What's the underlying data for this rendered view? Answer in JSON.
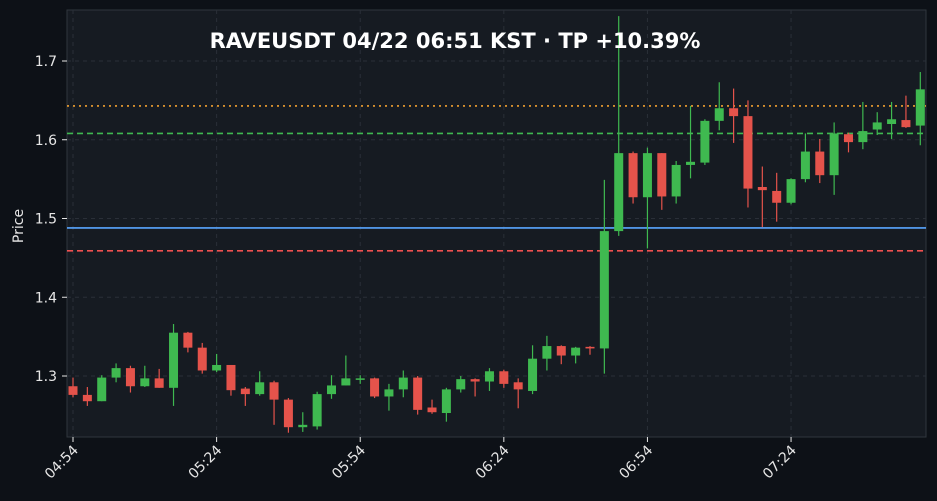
{
  "chart_data": {
    "type": "candlestick",
    "title": "RAVEUSDT  04/22 06:51 KST  ·  TP +10.39%",
    "symbol": "RAVEUSDT",
    "timestamp": "04/22 06:51 KST",
    "result": "TP +10.39%",
    "xlabel": "",
    "ylabel": "Price",
    "ylim": [
      1.222,
      1.762
    ],
    "y_ticks": [
      1.3,
      1.4,
      1.5,
      1.6,
      1.7
    ],
    "y_tick_labels": [
      "1.3",
      "1.4",
      "1.5",
      "1.6",
      "1.7"
    ],
    "x_tick_labels": [
      "04:54",
      "05:24",
      "05:54",
      "06:24",
      "06:54",
      "07:24"
    ],
    "x_tick_minutes": [
      0,
      30,
      60,
      90,
      120,
      150
    ],
    "interval_minutes": 3,
    "grid": true,
    "levels": [
      {
        "name": "take-profit",
        "price": 1.643,
        "color": "#f0a030",
        "style": "dotted"
      },
      {
        "name": "target",
        "price": 1.608,
        "color": "#3fb950",
        "style": "dashed"
      },
      {
        "name": "entry",
        "price": 1.488,
        "color": "#58a6ff",
        "style": "solid"
      },
      {
        "name": "stop-loss",
        "price": 1.459,
        "color": "#f05050",
        "style": "dashed"
      }
    ],
    "colors": {
      "up": "#3fb950",
      "down": "#e5534b",
      "background": "#161b22",
      "page": "#0d1117"
    },
    "candles": [
      {
        "t": 0,
        "o": 1.287,
        "h": 1.298,
        "l": 1.273,
        "c": 1.276
      },
      {
        "t": 3,
        "o": 1.276,
        "h": 1.286,
        "l": 1.262,
        "c": 1.268
      },
      {
        "t": 6,
        "o": 1.268,
        "h": 1.301,
        "l": 1.268,
        "c": 1.298
      },
      {
        "t": 9,
        "o": 1.298,
        "h": 1.316,
        "l": 1.292,
        "c": 1.31
      },
      {
        "t": 12,
        "o": 1.31,
        "h": 1.313,
        "l": 1.279,
        "c": 1.287
      },
      {
        "t": 15,
        "o": 1.287,
        "h": 1.313,
        "l": 1.286,
        "c": 1.297
      },
      {
        "t": 18,
        "o": 1.297,
        "h": 1.309,
        "l": 1.285,
        "c": 1.285
      },
      {
        "t": 21,
        "o": 1.285,
        "h": 1.366,
        "l": 1.262,
        "c": 1.355
      },
      {
        "t": 24,
        "o": 1.355,
        "h": 1.356,
        "l": 1.33,
        "c": 1.336
      },
      {
        "t": 27,
        "o": 1.336,
        "h": 1.342,
        "l": 1.303,
        "c": 1.307
      },
      {
        "t": 30,
        "o": 1.307,
        "h": 1.328,
        "l": 1.305,
        "c": 1.314
      },
      {
        "t": 33,
        "o": 1.314,
        "h": 1.314,
        "l": 1.275,
        "c": 1.282
      },
      {
        "t": 36,
        "o": 1.284,
        "h": 1.286,
        "l": 1.262,
        "c": 1.277
      },
      {
        "t": 39,
        "o": 1.277,
        "h": 1.306,
        "l": 1.275,
        "c": 1.292
      },
      {
        "t": 42,
        "o": 1.292,
        "h": 1.294,
        "l": 1.238,
        "c": 1.27
      },
      {
        "t": 45,
        "o": 1.27,
        "h": 1.272,
        "l": 1.228,
        "c": 1.235
      },
      {
        "t": 48,
        "o": 1.235,
        "h": 1.254,
        "l": 1.229,
        "c": 1.238
      },
      {
        "t": 51,
        "o": 1.236,
        "h": 1.28,
        "l": 1.232,
        "c": 1.277
      },
      {
        "t": 54,
        "o": 1.277,
        "h": 1.301,
        "l": 1.271,
        "c": 1.288
      },
      {
        "t": 57,
        "o": 1.288,
        "h": 1.326,
        "l": 1.288,
        "c": 1.297
      },
      {
        "t": 60,
        "o": 1.297,
        "h": 1.301,
        "l": 1.29,
        "c": 1.297
      },
      {
        "t": 63,
        "o": 1.297,
        "h": 1.298,
        "l": 1.272,
        "c": 1.274
      },
      {
        "t": 66,
        "o": 1.274,
        "h": 1.29,
        "l": 1.256,
        "c": 1.283
      },
      {
        "t": 69,
        "o": 1.283,
        "h": 1.307,
        "l": 1.273,
        "c": 1.298
      },
      {
        "t": 72,
        "o": 1.298,
        "h": 1.3,
        "l": 1.251,
        "c": 1.257
      },
      {
        "t": 75,
        "o": 1.26,
        "h": 1.27,
        "l": 1.252,
        "c": 1.254
      },
      {
        "t": 78,
        "o": 1.253,
        "h": 1.285,
        "l": 1.242,
        "c": 1.283
      },
      {
        "t": 81,
        "o": 1.283,
        "h": 1.3,
        "l": 1.279,
        "c": 1.296
      },
      {
        "t": 84,
        "o": 1.296,
        "h": 1.297,
        "l": 1.274,
        "c": 1.293
      },
      {
        "t": 87,
        "o": 1.293,
        "h": 1.31,
        "l": 1.281,
        "c": 1.306
      },
      {
        "t": 90,
        "o": 1.306,
        "h": 1.308,
        "l": 1.285,
        "c": 1.29
      },
      {
        "t": 93,
        "o": 1.292,
        "h": 1.297,
        "l": 1.259,
        "c": 1.283
      },
      {
        "t": 96,
        "o": 1.281,
        "h": 1.339,
        "l": 1.277,
        "c": 1.322
      },
      {
        "t": 99,
        "o": 1.322,
        "h": 1.351,
        "l": 1.307,
        "c": 1.338
      },
      {
        "t": 102,
        "o": 1.338,
        "h": 1.339,
        "l": 1.315,
        "c": 1.326
      },
      {
        "t": 105,
        "o": 1.326,
        "h": 1.337,
        "l": 1.316,
        "c": 1.336
      },
      {
        "t": 108,
        "o": 1.337,
        "h": 1.338,
        "l": 1.327,
        "c": 1.335
      },
      {
        "t": 111,
        "o": 1.335,
        "h": 1.549,
        "l": 1.303,
        "c": 1.484
      },
      {
        "t": 114,
        "o": 1.484,
        "h": 1.757,
        "l": 1.478,
        "c": 1.583
      },
      {
        "t": 117,
        "o": 1.583,
        "h": 1.585,
        "l": 1.519,
        "c": 1.527
      },
      {
        "t": 120,
        "o": 1.527,
        "h": 1.59,
        "l": 1.462,
        "c": 1.583
      },
      {
        "t": 123,
        "o": 1.583,
        "h": 1.583,
        "l": 1.511,
        "c": 1.528
      },
      {
        "t": 126,
        "o": 1.528,
        "h": 1.573,
        "l": 1.519,
        "c": 1.568
      },
      {
        "t": 129,
        "o": 1.568,
        "h": 1.643,
        "l": 1.551,
        "c": 1.572
      },
      {
        "t": 132,
        "o": 1.571,
        "h": 1.626,
        "l": 1.568,
        "c": 1.624
      },
      {
        "t": 135,
        "o": 1.624,
        "h": 1.673,
        "l": 1.612,
        "c": 1.64
      },
      {
        "t": 138,
        "o": 1.64,
        "h": 1.665,
        "l": 1.596,
        "c": 1.63
      },
      {
        "t": 141,
        "o": 1.63,
        "h": 1.65,
        "l": 1.514,
        "c": 1.538
      },
      {
        "t": 144,
        "o": 1.54,
        "h": 1.566,
        "l": 1.489,
        "c": 1.536
      },
      {
        "t": 147,
        "o": 1.535,
        "h": 1.558,
        "l": 1.496,
        "c": 1.52
      },
      {
        "t": 150,
        "o": 1.52,
        "h": 1.551,
        "l": 1.518,
        "c": 1.55
      },
      {
        "t": 153,
        "o": 1.55,
        "h": 1.608,
        "l": 1.546,
        "c": 1.585
      },
      {
        "t": 156,
        "o": 1.585,
        "h": 1.601,
        "l": 1.545,
        "c": 1.555
      },
      {
        "t": 159,
        "o": 1.555,
        "h": 1.622,
        "l": 1.53,
        "c": 1.608
      },
      {
        "t": 162,
        "o": 1.607,
        "h": 1.609,
        "l": 1.584,
        "c": 1.597
      },
      {
        "t": 165,
        "o": 1.597,
        "h": 1.648,
        "l": 1.588,
        "c": 1.611
      },
      {
        "t": 168,
        "o": 1.613,
        "h": 1.635,
        "l": 1.606,
        "c": 1.622
      },
      {
        "t": 171,
        "o": 1.62,
        "h": 1.648,
        "l": 1.601,
        "c": 1.626
      },
      {
        "t": 174,
        "o": 1.625,
        "h": 1.656,
        "l": 1.615,
        "c": 1.616
      },
      {
        "t": 177,
        "o": 1.618,
        "h": 1.686,
        "l": 1.593,
        "c": 1.664
      }
    ]
  }
}
